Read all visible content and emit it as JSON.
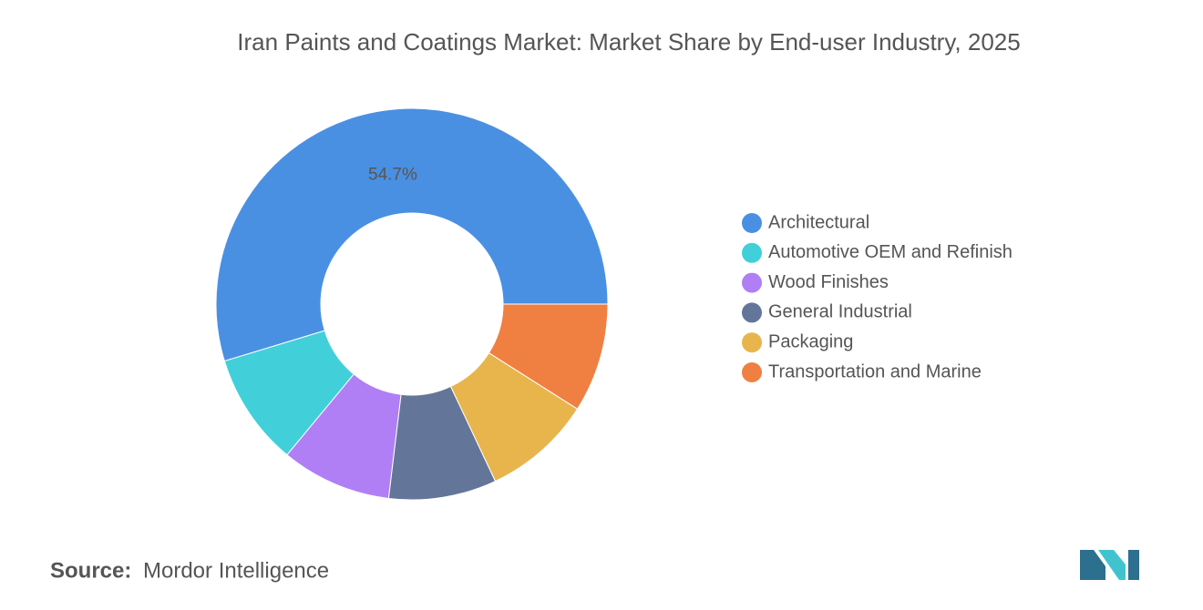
{
  "chart_data": {
    "type": "donut",
    "title": "Iran Paints and Coatings Market: Market Share by End-user Industry, 2025",
    "categories": [
      "Architectural",
      "Automotive OEM and Refinish",
      "Wood Finishes",
      "General Industrial",
      "Packaging",
      "Transportation and Marine"
    ],
    "values": [
      54.7,
      9.3,
      9.1,
      8.9,
      9.0,
      9.0
    ],
    "value_labels": [
      "54.7%",
      null,
      null,
      null,
      null,
      null
    ],
    "colors": [
      "#4a90e2",
      "#41d0d9",
      "#b07ff5",
      "#63769a",
      "#e8b54c",
      "#f07f42"
    ],
    "legend": "right"
  },
  "source": {
    "label": "Source:",
    "name": "Mordor Intelligence"
  }
}
